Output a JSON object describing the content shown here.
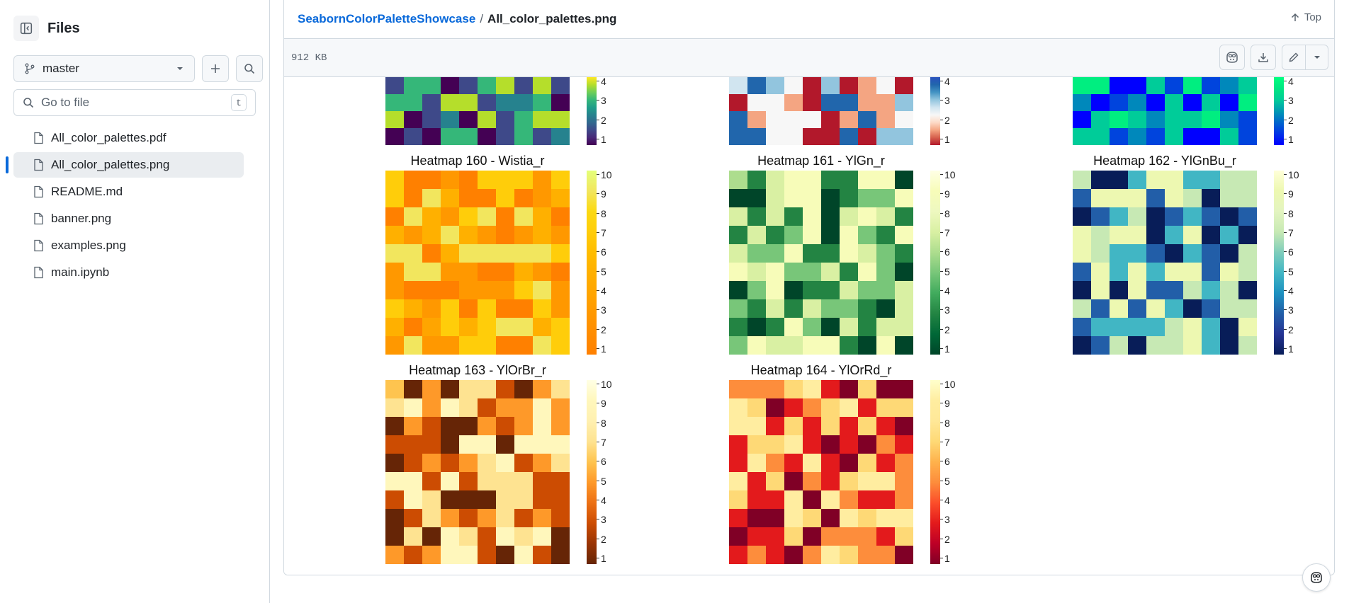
{
  "sidebar": {
    "title": "Files",
    "branch": "master",
    "search_placeholder": "Go to file",
    "search_shortcut": "t",
    "files": [
      {
        "name": "All_color_palettes.pdf",
        "active": false
      },
      {
        "name": "All_color_palettes.png",
        "active": true
      },
      {
        "name": "README.md",
        "active": false
      },
      {
        "name": "banner.png",
        "active": false
      },
      {
        "name": "examples.png",
        "active": false
      },
      {
        "name": "main.ipynb",
        "active": false
      }
    ]
  },
  "header": {
    "repo": "SeabornColorPaletteShowcase",
    "separator": "/",
    "file": "All_color_palettes.png",
    "top_label": "Top"
  },
  "filebar": {
    "size": "912 KB"
  },
  "colors": {
    "accent": "#0969da",
    "border": "#d1d9e0",
    "muted": "#59636e"
  },
  "image_content": {
    "top_partial": [
      {
        "colorbar_ticks": [
          "4",
          "3",
          "2",
          "1"
        ]
      },
      {
        "colorbar_ticks": [
          "4",
          "3",
          "2",
          "1"
        ]
      },
      {
        "colorbar_ticks": [
          "4",
          "3",
          "2",
          "1"
        ]
      }
    ],
    "heatmaps": [
      {
        "title": "Heatmap 160 - Wistia_r",
        "colorbar_ticks": [
          "10",
          "9",
          "8",
          "7",
          "6",
          "5",
          "4",
          "3",
          "2",
          "1"
        ]
      },
      {
        "title": "Heatmap 161 - YlGn_r",
        "colorbar_ticks": [
          "10",
          "9",
          "8",
          "7",
          "6",
          "5",
          "4",
          "3",
          "2",
          "1"
        ]
      },
      {
        "title": "Heatmap 162 - YlGnBu_r",
        "colorbar_ticks": [
          "10",
          "9",
          "8",
          "7",
          "6",
          "5",
          "4",
          "3",
          "2",
          "1"
        ]
      },
      {
        "title": "Heatmap 163 - YlOrBr_r",
        "colorbar_ticks": [
          "10",
          "9",
          "8",
          "7",
          "6",
          "5",
          "4",
          "3",
          "2",
          "1"
        ]
      },
      {
        "title": "Heatmap 164 - YlOrRd_r",
        "colorbar_ticks": [
          "10",
          "9",
          "8",
          "7",
          "6",
          "5",
          "4",
          "3",
          "2",
          "1"
        ]
      }
    ]
  }
}
